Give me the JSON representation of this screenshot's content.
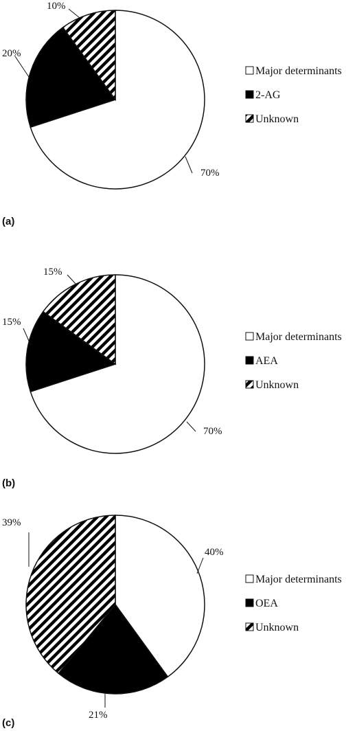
{
  "chart_data": [
    {
      "type": "pie",
      "panel_label": "(a)",
      "slices": [
        {
          "name": "Major determinants",
          "value": 70,
          "label": "70%",
          "fill": "white"
        },
        {
          "name": "2-AG",
          "value": 20,
          "label": "20%",
          "fill": "black"
        },
        {
          "name": "Unknown",
          "value": 10,
          "label": "10%",
          "fill": "hatch"
        }
      ],
      "legend": [
        "Major determinants",
        "2-AG",
        "Unknown"
      ],
      "legend_position": "right"
    },
    {
      "type": "pie",
      "panel_label": "(b)",
      "slices": [
        {
          "name": "Major determinants",
          "value": 70,
          "label": "70%",
          "fill": "white"
        },
        {
          "name": "AEA",
          "value": 15,
          "label": "15%",
          "fill": "black"
        },
        {
          "name": "Unknown",
          "value": 15,
          "label": "15%",
          "fill": "hatch"
        }
      ],
      "legend": [
        "Major determinants",
        "AEA",
        "Unknown"
      ],
      "legend_position": "right"
    },
    {
      "type": "pie",
      "panel_label": "(c)",
      "slices": [
        {
          "name": "Major determinants",
          "value": 40,
          "label": "40%",
          "fill": "white"
        },
        {
          "name": "OEA",
          "value": 21,
          "label": "21%",
          "fill": "black"
        },
        {
          "name": "Unknown",
          "value": 39,
          "label": "39%",
          "fill": "hatch"
        }
      ],
      "legend": [
        "Major determinants",
        "OEA",
        "Unknown"
      ],
      "legend_position": "right"
    }
  ],
  "colors": {
    "stroke": "#111111",
    "dark": "#000000",
    "light": "#ffffff"
  }
}
